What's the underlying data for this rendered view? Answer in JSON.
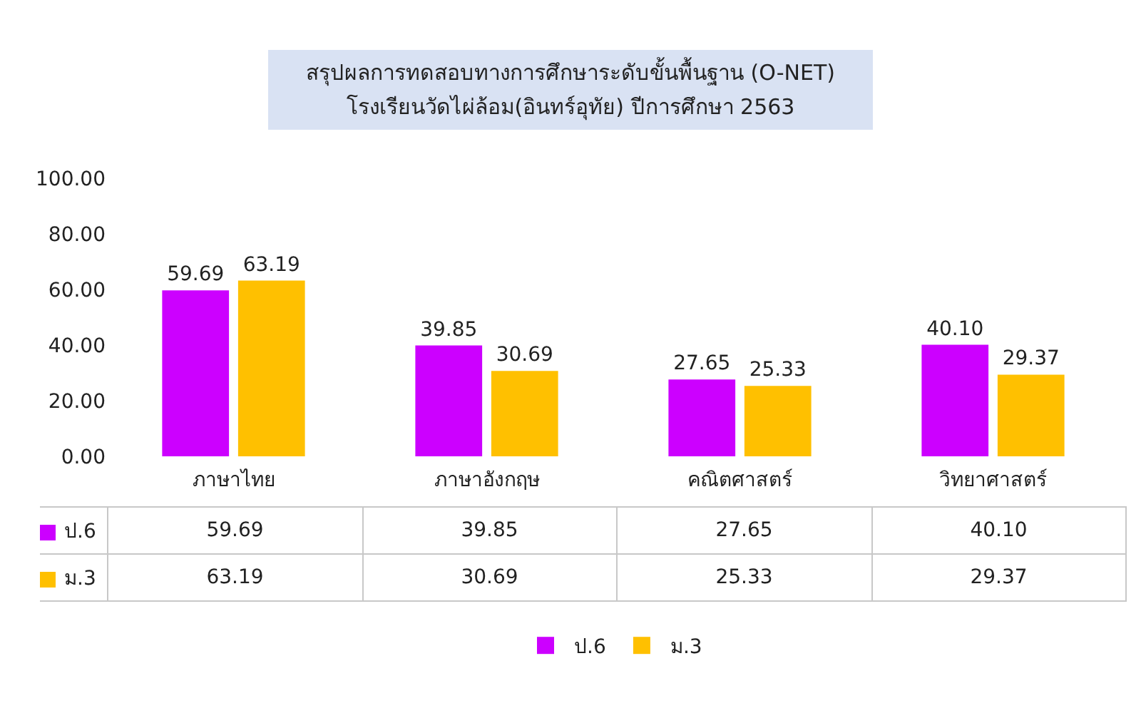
{
  "chart_data": {
    "type": "bar",
    "title": "สรุปผลการทดสอบทางการศึกษาระดับขั้นพื้นฐาน (O-NET)\nโรงเรียนวัดไผ่ล้อม(อินทร์อุทัย) ปีการศึกษา 2563",
    "categories": [
      "ภาษาไทย",
      "ภาษาอังกฤษ",
      "คณิตศาสตร์",
      "วิทยาศาสตร์"
    ],
    "series": [
      {
        "name": "ป.6",
        "color": "#cc00ff",
        "values": [
          59.69,
          39.85,
          27.65,
          40.1
        ],
        "value_labels": [
          "59.69",
          "39.85",
          "27.65",
          "40.10"
        ]
      },
      {
        "name": "ม.3",
        "color": "#ffc000",
        "values": [
          63.19,
          30.69,
          25.33,
          29.37
        ],
        "value_labels": [
          "63.19",
          "30.69",
          "25.33",
          "29.37"
        ]
      }
    ],
    "ylim": [
      0,
      100
    ],
    "yticks": [
      {
        "value": 0,
        "label": "0.00"
      },
      {
        "value": 20,
        "label": "20.00"
      },
      {
        "value": 40,
        "label": "40.00"
      },
      {
        "value": 60,
        "label": "60.00"
      },
      {
        "value": 80,
        "label": "80.00"
      },
      {
        "value": 100,
        "label": "100.00"
      }
    ],
    "grid": false,
    "legend": "bottom"
  }
}
